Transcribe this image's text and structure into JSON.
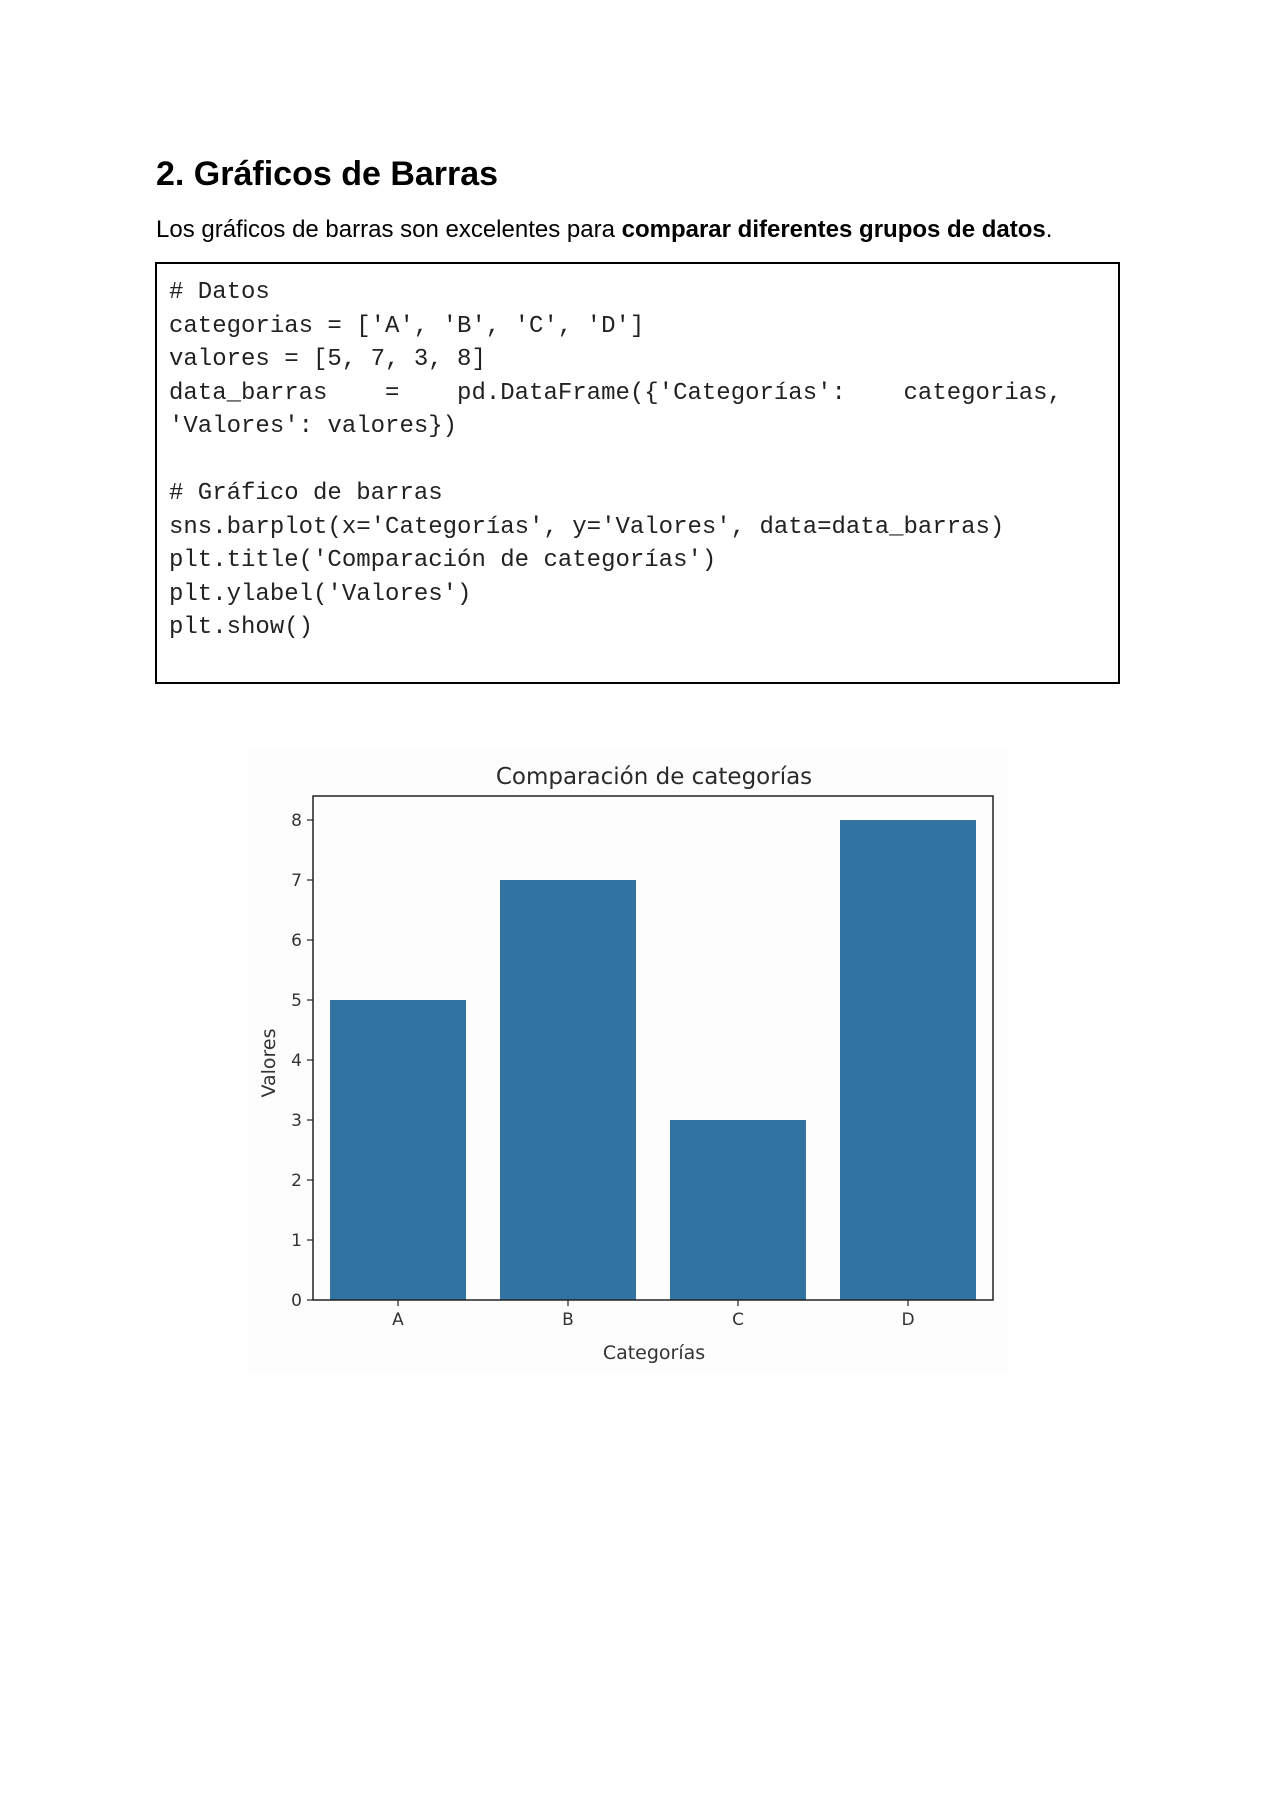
{
  "section": {
    "heading": "2. Gráficos de Barras",
    "intro_plain": "Los gráficos de barras son excelentes para ",
    "intro_bold": "comparar diferentes grupos de datos",
    "intro_end": "."
  },
  "code": {
    "line1": "# Datos",
    "line2": "categorias = ['A', 'B', 'C', 'D']",
    "line3": "valores = [5, 7, 3, 8]",
    "line4": "data_barras    =    pd.DataFrame({'Categorías':    categorias,",
    "line5": "'Valores': valores})",
    "line6": "# Gráfico de barras",
    "line7": "sns.barplot(x='Categorías', y='Valores', data=data_barras)",
    "line8": "plt.title('Comparación de categorías')",
    "line9": "plt.ylabel('Valores')",
    "line10": "plt.show()"
  },
  "chart_data": {
    "type": "bar",
    "title": "Comparación de categorías",
    "xlabel": "Categorías",
    "ylabel": "Valores",
    "categories": [
      "A",
      "B",
      "C",
      "D"
    ],
    "values": [
      5,
      7,
      3,
      8
    ],
    "ylim": [
      0,
      8.4
    ],
    "yticks": [
      0,
      1,
      2,
      3,
      4,
      5,
      6,
      7,
      8
    ],
    "bar_color": "#3274a1",
    "grid": false,
    "legend": "none"
  }
}
